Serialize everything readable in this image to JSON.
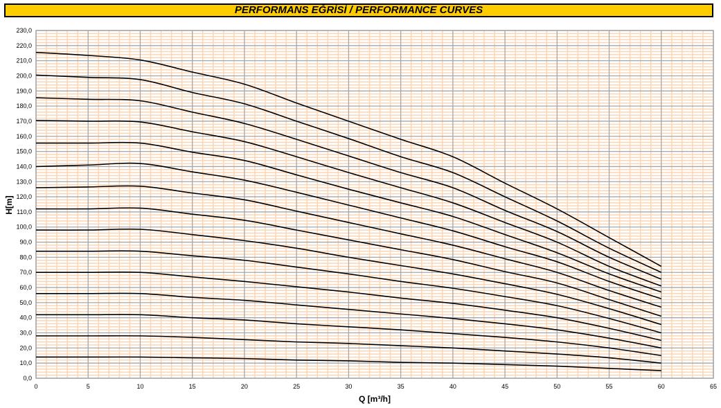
{
  "title": "PERFORMANS EĞRİSİ  / PERFORMANCE CURVES",
  "chart_data": {
    "type": "line",
    "xlabel": "Q [m³/h]",
    "ylabel": "H[m]",
    "xlim": [
      0,
      65
    ],
    "ylim": [
      0,
      230
    ],
    "xticks": [
      0,
      5,
      10,
      15,
      20,
      25,
      30,
      35,
      40,
      45,
      50,
      55,
      60,
      65
    ],
    "yticks": [
      "0,0",
      "10,0",
      "20,0",
      "30,0",
      "40,0",
      "50,0",
      "60,0",
      "70,0",
      "80,0",
      "90,0",
      "100,0",
      "110,0",
      "120,0",
      "130,0",
      "140,0",
      "150,0",
      "160,0",
      "170,0",
      "180,0",
      "190,0",
      "200,0",
      "210,0",
      "220,0",
      "230,0"
    ],
    "grid": true,
    "colors": {
      "major_grid": "#a6a6a6",
      "minor_grid": "#fcd5b4",
      "line": "#000000",
      "title_bg": "#ffcc00"
    },
    "x": [
      0,
      5,
      10,
      15,
      20,
      25,
      30,
      35,
      40,
      45,
      50,
      55,
      60
    ],
    "series": [
      {
        "values": [
          215.5,
          213.5,
          210.5,
          202.5,
          194.5,
          182,
          170,
          158,
          146.5,
          129,
          112,
          93,
          74
        ]
      },
      {
        "values": [
          200.5,
          199,
          197.5,
          189,
          181.5,
          170,
          158.5,
          146.5,
          136,
          120,
          104,
          86,
          70
        ]
      },
      {
        "values": [
          185.5,
          184.5,
          183.5,
          176,
          168.5,
          158,
          147,
          136,
          126,
          111,
          97,
          80,
          65.5
        ]
      },
      {
        "values": [
          170.5,
          170,
          169.5,
          163,
          156.5,
          146.5,
          136,
          126,
          116,
          103,
          90,
          74,
          61
        ]
      },
      {
        "values": [
          155.5,
          155.5,
          155.5,
          149.5,
          144,
          134.5,
          125,
          116,
          107,
          95,
          83,
          69,
          57
        ]
      },
      {
        "values": [
          140,
          141,
          142,
          136.5,
          131,
          123,
          114.5,
          106,
          97.5,
          87,
          77,
          64,
          52.5
        ]
      },
      {
        "values": [
          126,
          126.5,
          127,
          122.5,
          118,
          110.5,
          103,
          95.5,
          88,
          79,
          70,
          58,
          47
        ]
      },
      {
        "values": [
          112,
          112,
          112.5,
          108.5,
          104.5,
          98,
          91.5,
          85,
          78.5,
          70.5,
          63,
          52,
          41
        ]
      },
      {
        "values": [
          98,
          98,
          98.5,
          95,
          91,
          86,
          80,
          74.5,
          69,
          62.5,
          55.5,
          46,
          35.5
        ]
      },
      {
        "values": [
          84,
          84,
          84,
          81,
          78,
          73.5,
          69,
          64,
          59.5,
          54,
          48,
          39.5,
          30
        ]
      },
      {
        "values": [
          70,
          70,
          70,
          67,
          64,
          60.5,
          57,
          53,
          49.5,
          45,
          40,
          33,
          25
        ]
      },
      {
        "values": [
          56,
          56,
          56,
          53.5,
          51.5,
          48.5,
          45.5,
          42.5,
          39.5,
          36,
          32,
          26.5,
          20
        ]
      },
      {
        "values": [
          42,
          42,
          42,
          40,
          38.5,
          36,
          34,
          32,
          29.5,
          27,
          24,
          20,
          15
        ]
      },
      {
        "values": [
          28,
          28,
          28,
          27,
          25.5,
          24,
          23,
          21.5,
          20,
          18,
          16,
          13.5,
          10
        ]
      },
      {
        "values": [
          14,
          14,
          14,
          13.5,
          13,
          12,
          11.5,
          10.5,
          10,
          9,
          8,
          6.5,
          5
        ]
      }
    ]
  }
}
